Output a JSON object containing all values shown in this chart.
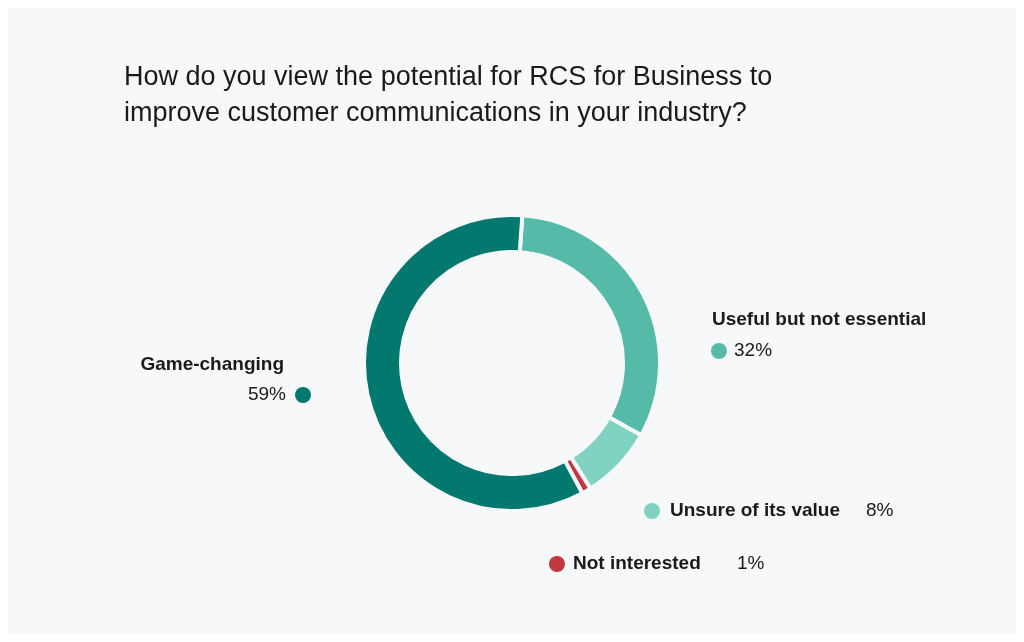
{
  "chart_data": {
    "type": "donut",
    "title": "How do you view the potential for RCS for Business to improve customer communications in your industry?",
    "categories": [
      "Useful but not essential",
      "Unsure of its value",
      "Not interested",
      "Game-changing"
    ],
    "values": [
      32,
      8,
      1,
      59
    ],
    "value_labels": [
      "32%",
      "8%",
      "1%",
      "59%"
    ],
    "colors": [
      "#55bba8",
      "#7fd3c0",
      "#c0393f",
      "#03786f"
    ],
    "legend": "right"
  }
}
